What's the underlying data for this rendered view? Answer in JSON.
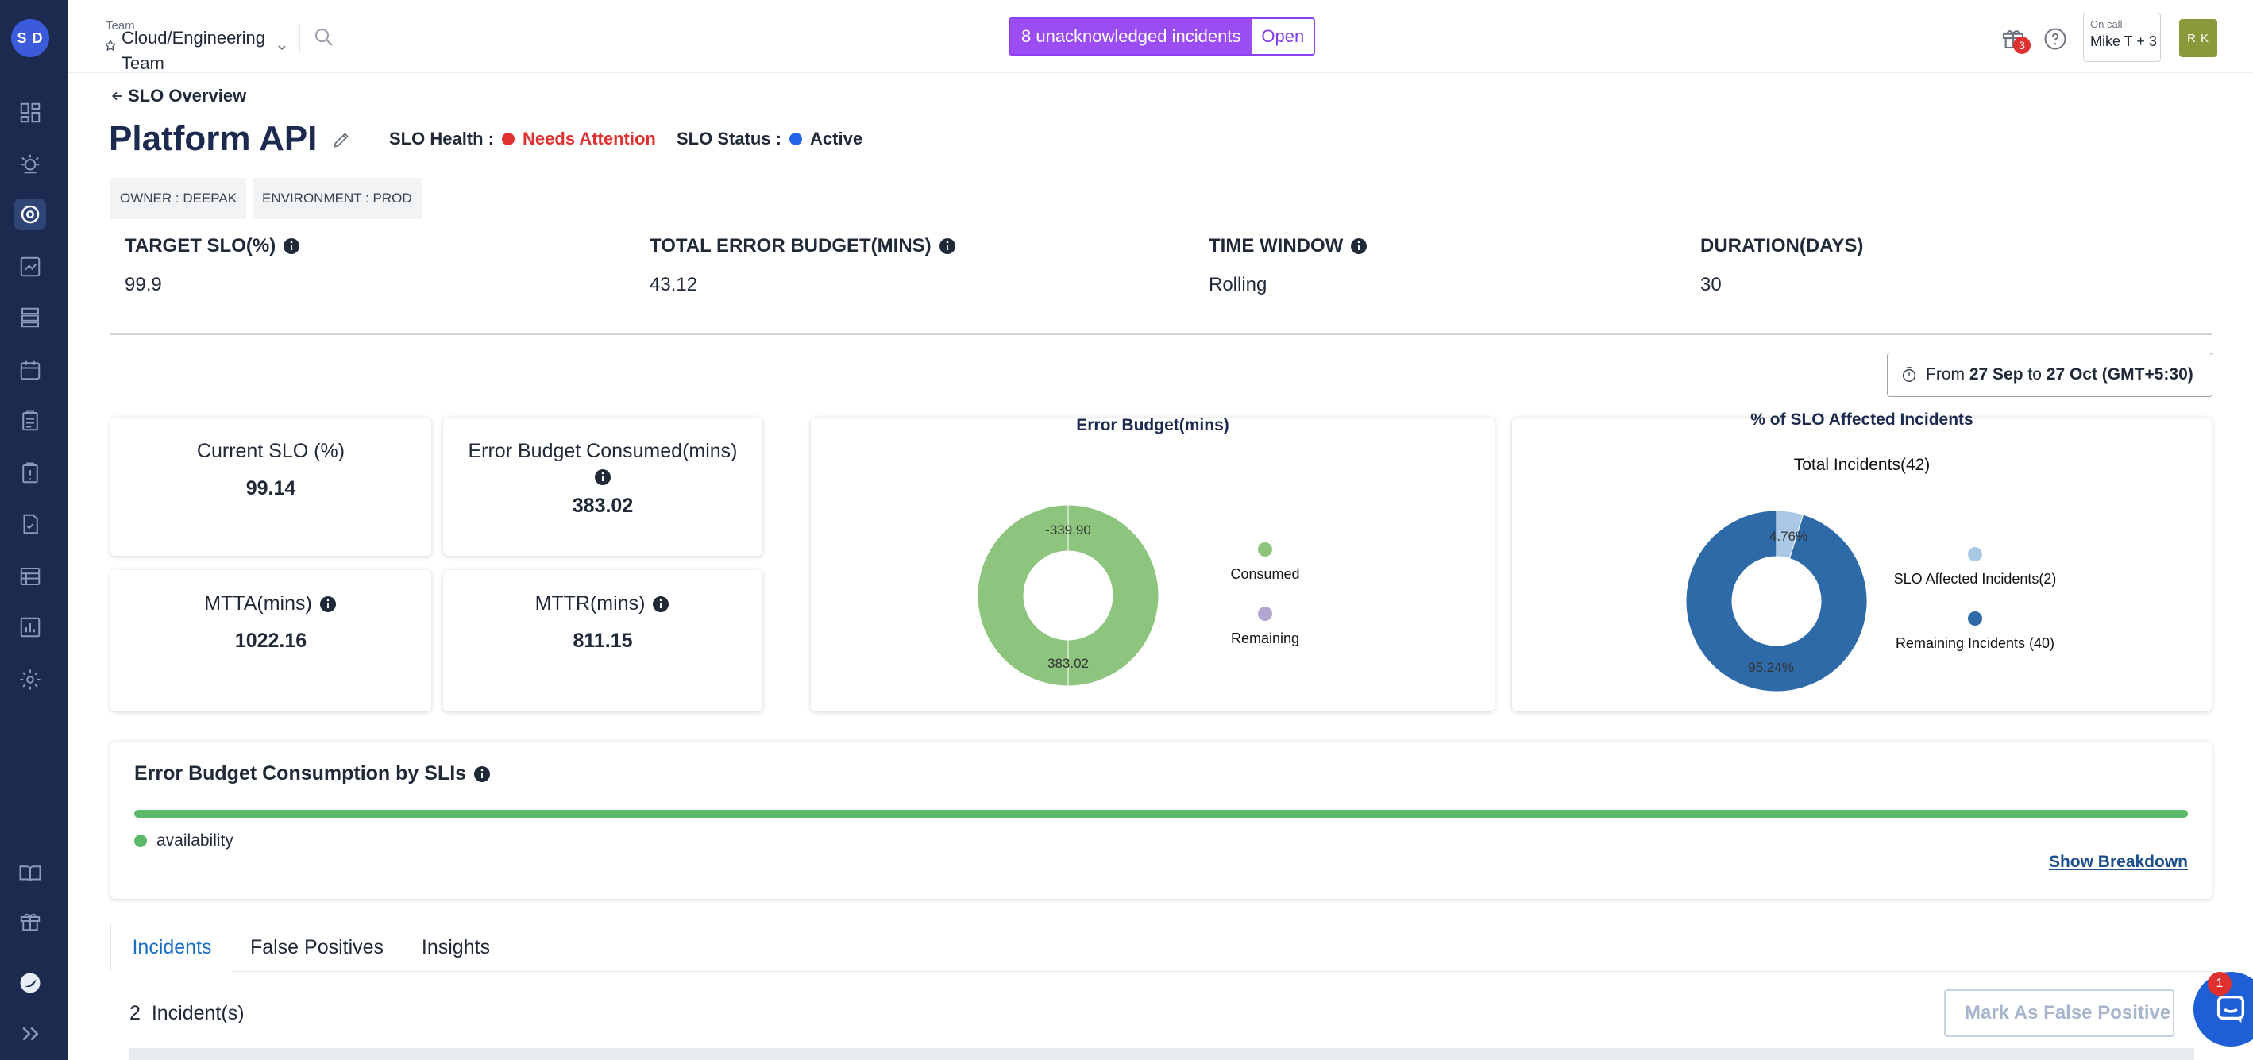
{
  "sidebar": {
    "avatar_initials": "S D",
    "items": [
      "dashboard-icon",
      "incidents-icon",
      "slo-icon",
      "analytics-icon",
      "services-icon",
      "calendar-icon",
      "tasks-icon",
      "runbook-icon",
      "checklist-icon",
      "reports-icon",
      "chart-icon",
      "settings-icon"
    ],
    "bottom_items": [
      "docs-icon",
      "gift-icon",
      "brand-icon",
      "expand-icon"
    ]
  },
  "topbar": {
    "team_label": "Team",
    "team_name": "Cloud/Engineering Team",
    "incidents_label": "8 unacknowledged incidents",
    "incidents_open": "Open",
    "notification_count": "3",
    "oncall_label": "On call",
    "oncall_value": "Mike T + 3",
    "user_initials": "R K"
  },
  "header": {
    "back_label": "SLO Overview",
    "title": "Platform API",
    "health_label": "SLO Health :",
    "health_value": "Needs Attention",
    "status_label": "SLO Status :",
    "status_value": "Active",
    "owner_tag": "OWNER : DEEPAK",
    "env_tag": "ENVIRONMENT : PROD"
  },
  "stats": [
    {
      "label": "TARGET SLO(%)",
      "value": "99.9"
    },
    {
      "label": "TOTAL ERROR BUDGET(MINS)",
      "value": "43.12"
    },
    {
      "label": "TIME WINDOW",
      "value": "Rolling"
    },
    {
      "label": "DURATION(DAYS)",
      "value": "30"
    }
  ],
  "daterange": {
    "from": "From",
    "start": "27 Sep",
    "to": "to",
    "end": "27 Oct (GMT+5:30)"
  },
  "metrics": {
    "current_slo_label": "Current SLO (%)",
    "current_slo_value": "99.14",
    "budget_consumed_label": "Error Budget Consumed(mins)",
    "budget_consumed_value": "383.02",
    "mtta_label": "MTTA(mins)",
    "mtta_value": "1022.16",
    "mttr_label": "MTTR(mins)",
    "mttr_value": "811.15"
  },
  "error_budget_chart": {
    "title": "Error Budget(mins)",
    "label_top": "-339.90",
    "label_bottom": "383.02",
    "legend": [
      {
        "label": "Consumed",
        "color": "#8dc47e"
      },
      {
        "label": "Remaining",
        "color": "#b3a6cf"
      }
    ]
  },
  "incidents_chart": {
    "title": "% of SLO Affected Incidents",
    "subtitle": "Total Incidents(42)",
    "label_small": "4.76%",
    "label_large": "95.24%",
    "legend": [
      {
        "label": "SLO Affected Incidents(2)",
        "color": "#a9c8e6"
      },
      {
        "label": "Remaining Incidents (40)",
        "color": "#2f6aa8"
      }
    ]
  },
  "chart_data": [
    {
      "type": "pie",
      "title": "Error Budget(mins)",
      "categories": [
        "Consumed",
        "Remaining"
      ],
      "values": [
        383.02,
        -339.9
      ]
    },
    {
      "type": "pie",
      "title": "% of SLO Affected Incidents",
      "categories": [
        "SLO Affected Incidents(2)",
        "Remaining Incidents (40)"
      ],
      "values": [
        4.76,
        95.24
      ]
    }
  ],
  "sli": {
    "title": "Error Budget Consumption by SLIs",
    "legend_label": "availability",
    "bar_color": "#5cb96a",
    "show_breakdown": "Show Breakdown"
  },
  "tabs": [
    "Incidents",
    "False Positives",
    "Insights"
  ],
  "incidents_section": {
    "count": "2",
    "count_label": "Incident(s)",
    "mark_button": "Mark As False Positive"
  },
  "chat": {
    "badge": "1"
  },
  "colors": {
    "sidebar": "#1b2a4e",
    "accent_purple": "#9b4cf2",
    "health_red": "#e03131",
    "status_blue": "#2563eb"
  }
}
